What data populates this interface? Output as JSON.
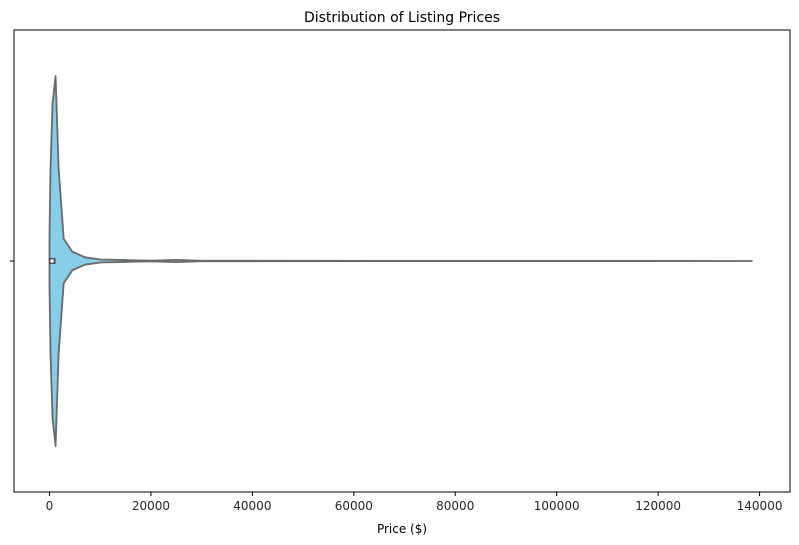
{
  "chart_data": {
    "type": "violin",
    "title": "Distribution of Listing Prices",
    "xlabel": "Price ($)",
    "ylabel": "",
    "xlim": [
      -7000,
      146000
    ],
    "x_ticks": [
      0,
      20000,
      40000,
      60000,
      80000,
      100000,
      120000,
      140000
    ],
    "x_tick_labels": [
      "0",
      "20000",
      "40000",
      "60000",
      "80000",
      "100000",
      "120000",
      "140000"
    ],
    "y_tick_labels": [
      ""
    ],
    "grid": false,
    "legend": "none",
    "series": [
      {
        "fill_color": "#87CEEB",
        "edge_color": "#696969",
        "min": 0,
        "max": 138500,
        "q1": 200,
        "median": 500,
        "q3": 900,
        "density_profile": [
          {
            "price": 0,
            "half_width": 0.14
          },
          {
            "price": 200,
            "half_width": 0.5
          },
          {
            "price": 600,
            "half_width": 0.85
          },
          {
            "price": 1200,
            "half_width": 1.0
          },
          {
            "price": 1800,
            "half_width": 0.5
          },
          {
            "price": 2800,
            "half_width": 0.12
          },
          {
            "price": 4500,
            "half_width": 0.05
          },
          {
            "price": 7000,
            "half_width": 0.02
          },
          {
            "price": 10000,
            "half_width": 0.008
          },
          {
            "price": 15000,
            "half_width": 0.005
          },
          {
            "price": 20000,
            "half_width": 0.002
          },
          {
            "price": 25000,
            "half_width": 0.006
          },
          {
            "price": 30000,
            "half_width": 0.001
          },
          {
            "price": 138500,
            "half_width": 0.0
          }
        ]
      }
    ]
  }
}
